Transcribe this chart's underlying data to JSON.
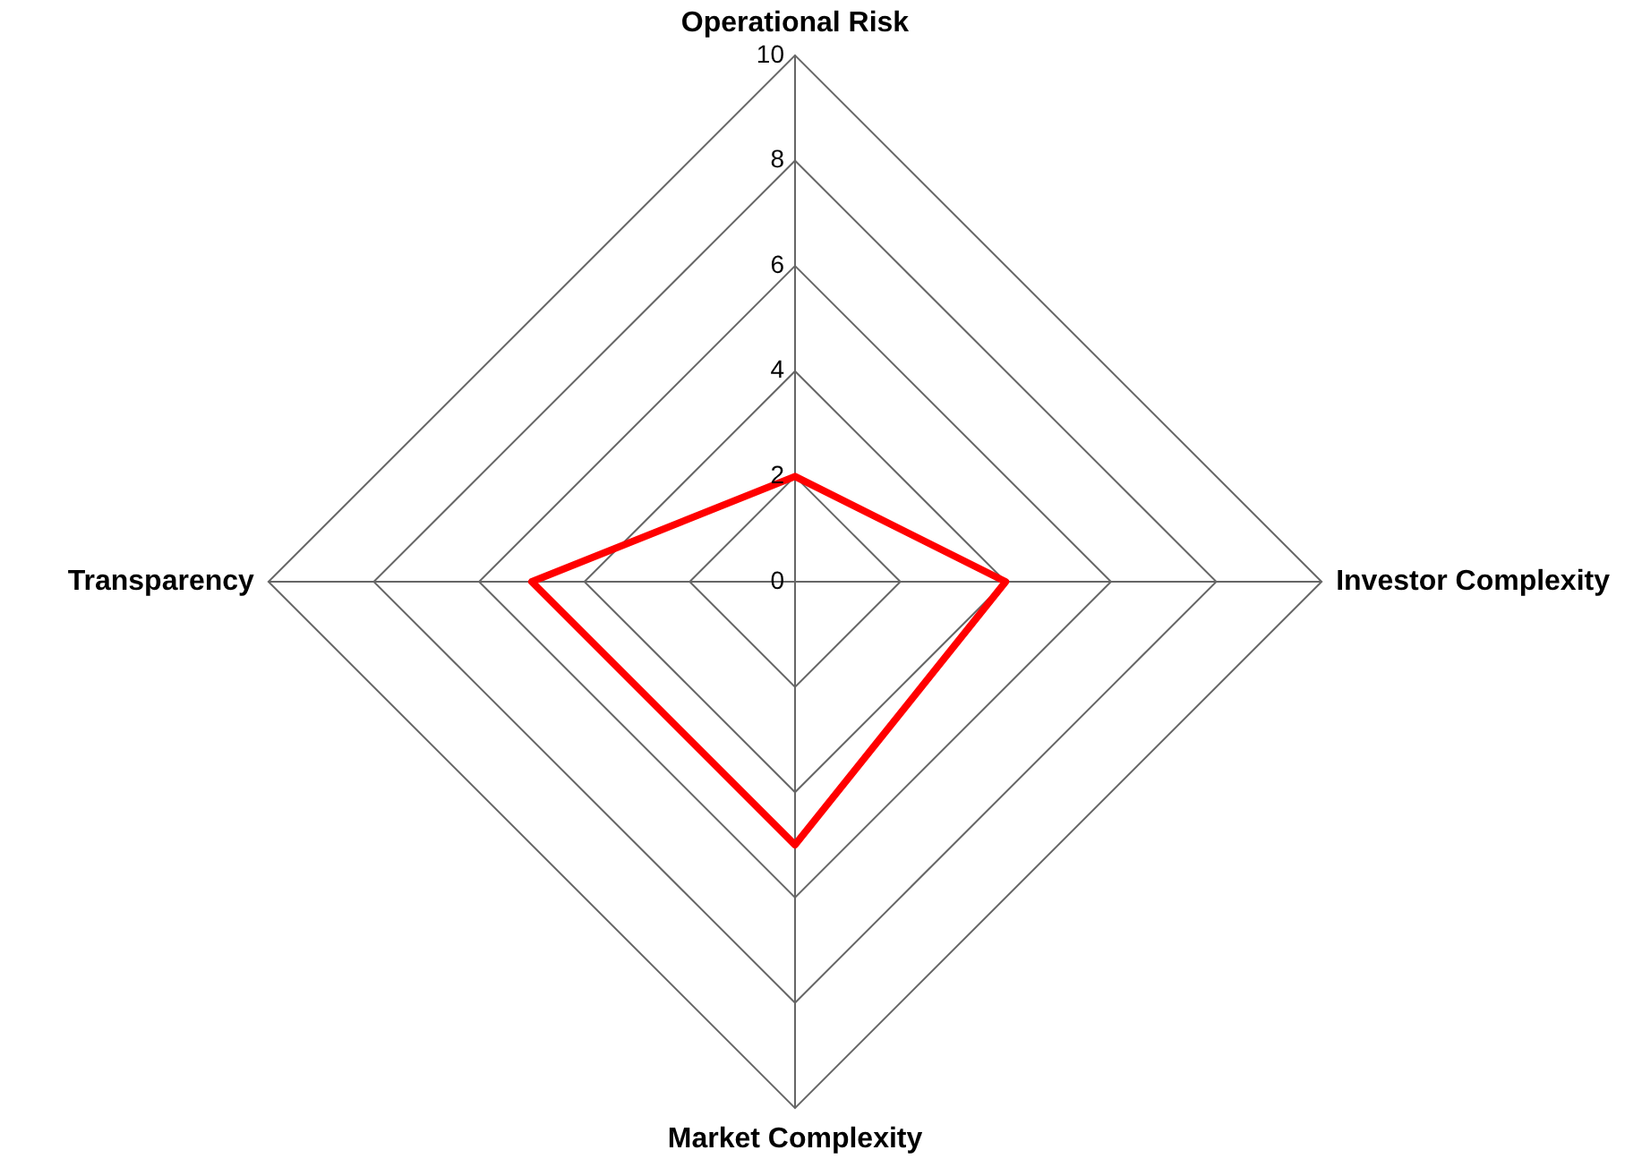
{
  "chart_data": {
    "type": "radar",
    "categories": [
      "Operational Risk",
      "Investor Complexity",
      "Market Complexity",
      "Transparency"
    ],
    "series": [
      {
        "color": "#ff0000",
        "values": [
          2,
          4,
          5,
          5
        ]
      }
    ],
    "ylim": [
      0,
      10
    ],
    "yticks": [
      0,
      2,
      4,
      6,
      8,
      10
    ],
    "grid": true,
    "marker": "none",
    "line_style": "solid",
    "legend": false
  }
}
